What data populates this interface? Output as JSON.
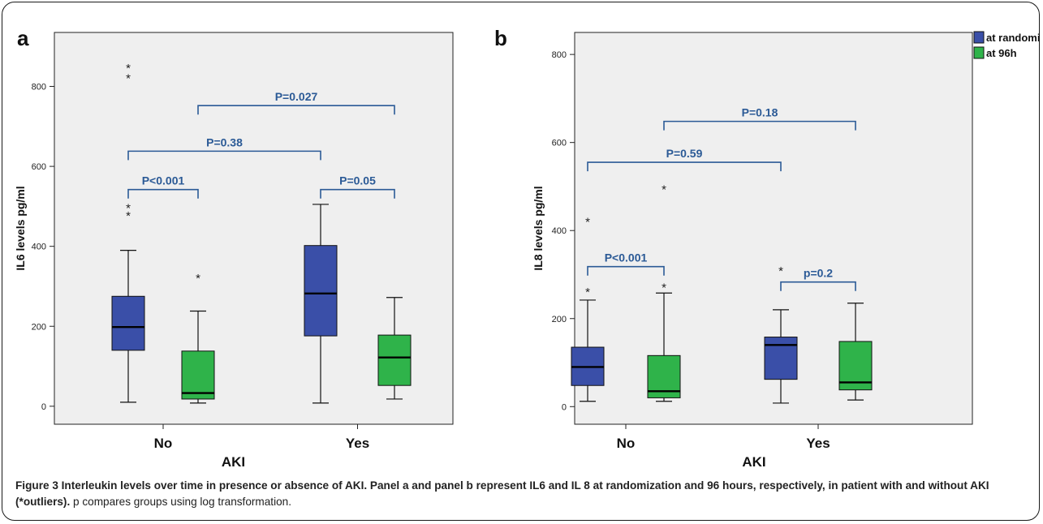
{
  "colors": {
    "randomization": "#3a4fa8",
    "h96": "#2fb34a",
    "annotation": "#2b5a96",
    "plot_background": "#efefef",
    "axis": "#222222"
  },
  "legend": {
    "items": [
      {
        "label": "at randomization",
        "color": "#3a4fa8"
      },
      {
        "label": "at 96h",
        "color": "#2fb34a"
      }
    ],
    "position": "top-right"
  },
  "caption": {
    "title": "Figure 3 Interleukin levels over time in presence or absence of AKI. Panel a and panel b represent IL6 and IL 8 at randomization and 96 hours, respectively, in patient with and without AKI (*outliers).",
    "note": "p compares groups using log transformation."
  },
  "chart_data": [
    {
      "type": "boxplot",
      "panel_label": "a",
      "xlabel": "AKI",
      "ylabel": "IL6 levels pg/ml",
      "categories": [
        "No",
        "Yes"
      ],
      "ylim": [
        -45,
        935
      ],
      "yticks": [
        0,
        200,
        400,
        600,
        800
      ],
      "grid": false,
      "series": [
        {
          "name": "at randomization",
          "boxes": [
            {
              "category": "No",
              "whisker_low": 10,
              "q1": 140,
              "median": 198,
              "q3": 275,
              "whisker_high": 390,
              "outliers": [
                478,
                498,
                822,
                848
              ]
            },
            {
              "category": "Yes",
              "whisker_low": 8,
              "q1": 176,
              "median": 282,
              "q3": 402,
              "whisker_high": 505,
              "outliers": []
            }
          ]
        },
        {
          "name": "at 96h",
          "boxes": [
            {
              "category": "No",
              "whisker_low": 8,
              "q1": 18,
              "median": 33,
              "q3": 138,
              "whisker_high": 238,
              "outliers": [
                322
              ]
            },
            {
              "category": "Yes",
              "whisker_low": 18,
              "q1": 52,
              "median": 122,
              "q3": 178,
              "whisker_high": 272,
              "outliers": []
            }
          ]
        }
      ],
      "annotations": [
        {
          "text": "P<0.001",
          "from": "No|at randomization",
          "to": "No|at 96h",
          "level": 542
        },
        {
          "text": "P=0.05",
          "from": "Yes|at randomization",
          "to": "Yes|at 96h",
          "level": 542
        },
        {
          "text": "P=0.38",
          "from": "No|at randomization",
          "to": "Yes|at randomization",
          "level": 638
        },
        {
          "text": "P=0.027",
          "from": "No|at 96h",
          "to": "Yes|at 96h",
          "level": 752
        }
      ]
    },
    {
      "type": "boxplot",
      "panel_label": "b",
      "xlabel": "AKI",
      "ylabel": "IL8 levels pg/ml",
      "categories": [
        "No",
        "Yes"
      ],
      "ylim": [
        -40,
        850
      ],
      "yticks": [
        0,
        200,
        400,
        600,
        800
      ],
      "grid": false,
      "series": [
        {
          "name": "at randomization",
          "boxes": [
            {
              "category": "No",
              "whisker_low": 12,
              "q1": 48,
              "median": 90,
              "q3": 135,
              "whisker_high": 242,
              "outliers": [
                262,
                422
              ]
            },
            {
              "category": "Yes",
              "whisker_low": 8,
              "q1": 62,
              "median": 140,
              "q3": 158,
              "whisker_high": 220,
              "outliers": [
                310
              ]
            }
          ]
        },
        {
          "name": "at 96h",
          "boxes": [
            {
              "category": "No",
              "whisker_low": 12,
              "q1": 20,
              "median": 35,
              "q3": 116,
              "whisker_high": 258,
              "outliers": [
                272,
                495
              ]
            },
            {
              "category": "Yes",
              "whisker_low": 15,
              "q1": 38,
              "median": 55,
              "q3": 148,
              "whisker_high": 235,
              "outliers": []
            }
          ]
        }
      ],
      "annotations": [
        {
          "text": "P<0.001",
          "from": "No|at randomization",
          "to": "No|at 96h",
          "level": 318
        },
        {
          "text": "p=0.2",
          "from": "Yes|at randomization",
          "to": "Yes|at 96h",
          "level": 283
        },
        {
          "text": "P=0.59",
          "from": "No|at randomization",
          "to": "Yes|at randomization",
          "level": 555
        },
        {
          "text": "P=0.18",
          "from": "No|at 96h",
          "to": "Yes|at 96h",
          "level": 648
        }
      ]
    }
  ]
}
